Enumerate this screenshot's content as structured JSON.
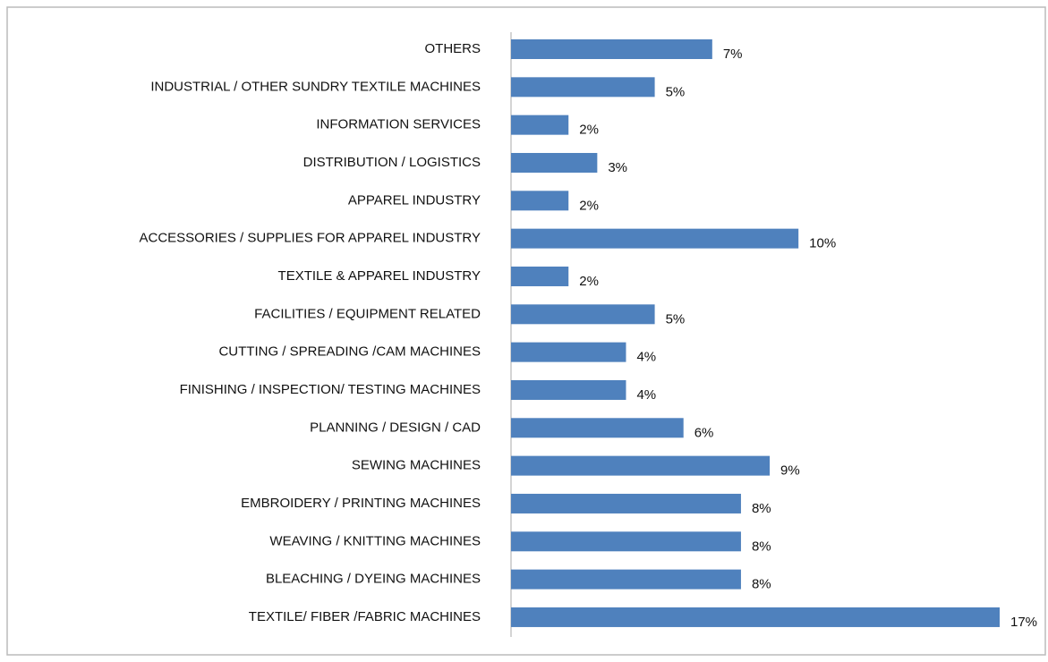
{
  "chart_data": {
    "type": "bar",
    "orientation": "horizontal",
    "categories": [
      "OTHERS",
      "INDUSTRIAL / OTHER SUNDRY TEXTILE MACHINES",
      "INFORMATION SERVICES",
      "DISTRIBUTION / LOGISTICS",
      "APPAREL INDUSTRY",
      "ACCESSORIES / SUPPLIES FOR APPAREL INDUSTRY",
      "TEXTILE & APPAREL INDUSTRY",
      "FACILITIES / EQUIPMENT RELATED",
      "CUTTING / SPREADING /CAM MACHINES",
      "FINISHING / INSPECTION/ TESTING MACHINES",
      "PLANNING / DESIGN / CAD",
      "SEWING MACHINES",
      "EMBROIDERY / PRINTING MACHINES",
      "WEAVING / KNITTING MACHINES",
      "BLEACHING / DYEING MACHINES",
      "TEXTILE/ FIBER /FABRIC MACHINES"
    ],
    "values": [
      7,
      5,
      2,
      3,
      2,
      10,
      2,
      5,
      4,
      4,
      6,
      9,
      8,
      8,
      8,
      17
    ],
    "value_labels": [
      "7%",
      "5%",
      "2%",
      "3%",
      "2%",
      "10%",
      "2%",
      "5%",
      "4%",
      "4%",
      "6%",
      "9%",
      "8%",
      "8%",
      "8%",
      "17%"
    ],
    "color": "#4f81bd"
  }
}
